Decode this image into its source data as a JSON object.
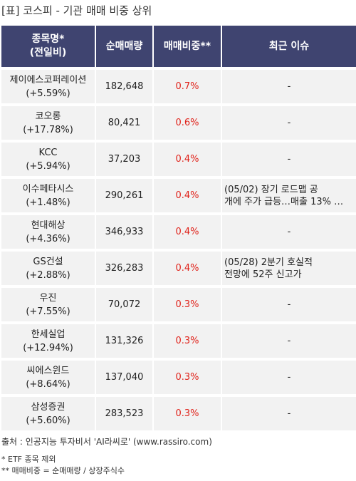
{
  "title": "[표] 코스피 - 기관 매매 비중 상위",
  "table": {
    "headers": {
      "name_line1": "종목명*",
      "name_line2": "(전일비)",
      "qty": "순매매량",
      "ratio": "매매비중**",
      "issue": "최근 이슈"
    },
    "rows": [
      {
        "name": "제이에스코퍼레이션",
        "change": "(+5.59%)",
        "qty": "182,648",
        "ratio": "0.7%",
        "issue_line1": "-",
        "issue_line2": ""
      },
      {
        "name": "코오롱",
        "change": "(+17.78%)",
        "qty": "80,421",
        "ratio": "0.6%",
        "issue_line1": "-",
        "issue_line2": ""
      },
      {
        "name": "KCC",
        "change": "(+5.94%)",
        "qty": "37,203",
        "ratio": "0.4%",
        "issue_line1": "-",
        "issue_line2": ""
      },
      {
        "name": "이수페타시스",
        "change": "(+1.48%)",
        "qty": "290,261",
        "ratio": "0.4%",
        "issue_line1": "(05/02) 장기 로드맵 공",
        "issue_line2": "개에 주가 급등…매출 13% …"
      },
      {
        "name": "현대해상",
        "change": "(+4.36%)",
        "qty": "346,933",
        "ratio": "0.4%",
        "issue_line1": "-",
        "issue_line2": ""
      },
      {
        "name": "GS건설",
        "change": "(+2.88%)",
        "qty": "326,283",
        "ratio": "0.4%",
        "issue_line1": "(05/28) 2분기 호실적",
        "issue_line2": "전망에 52주 신고가"
      },
      {
        "name": "우진",
        "change": "(+7.55%)",
        "qty": "70,072",
        "ratio": "0.3%",
        "issue_line1": "-",
        "issue_line2": ""
      },
      {
        "name": "한세실업",
        "change": "(+12.94%)",
        "qty": "131,326",
        "ratio": "0.3%",
        "issue_line1": "-",
        "issue_line2": ""
      },
      {
        "name": "씨에스윈드",
        "change": "(+8.64%)",
        "qty": "137,040",
        "ratio": "0.3%",
        "issue_line1": "-",
        "issue_line2": ""
      },
      {
        "name": "삼성증권",
        "change": "(+5.60%)",
        "qty": "283,523",
        "ratio": "0.3%",
        "issue_line1": "-",
        "issue_line2": ""
      }
    ]
  },
  "footer": {
    "source": "출처 : 인공지능 투자비서 'AI라씨로' (www.rassiro.com)",
    "note1": "* ETF 종목 제외",
    "note2": "** 매매비중 = 순매매량 / 상장주식수"
  },
  "colors": {
    "header_bg": "#3f4470",
    "cell_bg": "#f2f2f2",
    "ratio_text": "#e0231b"
  }
}
